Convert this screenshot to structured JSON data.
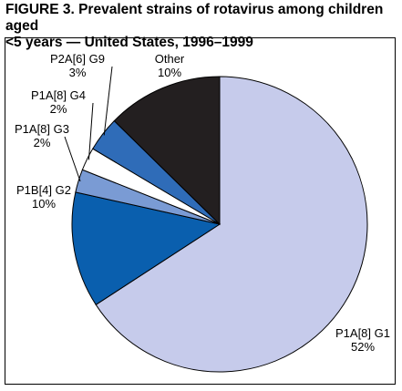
{
  "title_line1": "FIGURE 3. Prevalent strains of rotavirus among children aged",
  "title_line2": "<5 years — United States, 1996–1999",
  "chart_data": {
    "type": "pie",
    "title": "FIGURE 3. Prevalent strains of rotavirus among children aged <5 years — United States, 1996–1999",
    "categories": [
      "P1A[8] G1",
      "P1B[4] G2",
      "P1A[8] G3",
      "P1A[8] G4",
      "P2A[6] G9",
      "Other"
    ],
    "values": [
      52,
      10,
      2,
      2,
      3,
      10
    ],
    "value_labels": [
      "52%",
      "10%",
      "2%",
      "2%",
      "3%",
      "10%"
    ],
    "colors": [
      "#c6cbeb",
      "#0a5fae",
      "#7a9bd4",
      "#ffffff",
      "#2f6cb8",
      "#231f20"
    ],
    "start": "12 o'clock",
    "direction": "clockwise, largest slice starting at 12 o'clock"
  }
}
